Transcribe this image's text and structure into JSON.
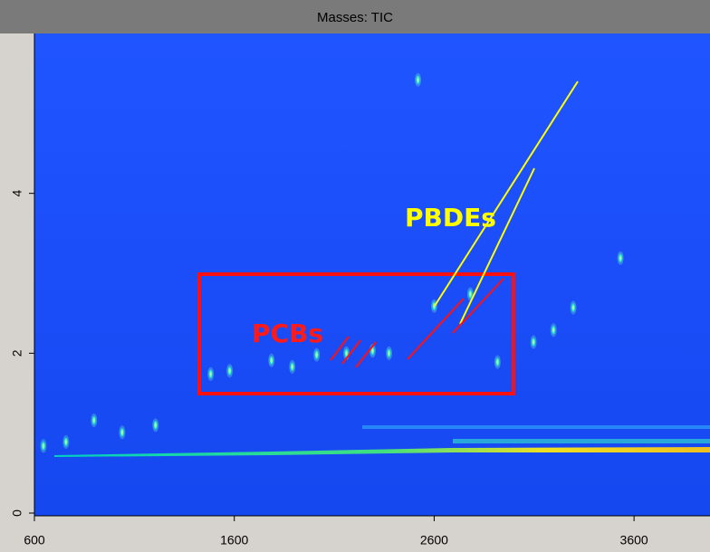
{
  "chart_data": {
    "type": "scatter",
    "title": "Masses: TIC",
    "xlim": [
      600,
      3980
    ],
    "ylim": [
      0,
      6
    ],
    "xticks": [
      600,
      1600,
      2600,
      3600
    ],
    "yticks": [
      0,
      2,
      4
    ],
    "x": [
      645,
      758,
      898,
      1039,
      1206,
      1482,
      1577,
      1786,
      1890,
      2012,
      2161,
      2292,
      2374,
      2600,
      2781,
      2917,
      3097,
      3197,
      3296,
      3532,
      2519
    ],
    "values": [
      0.84,
      0.89,
      1.16,
      1.01,
      1.1,
      1.74,
      1.78,
      1.91,
      1.83,
      1.98,
      2.0,
      2.03,
      2.0,
      2.59,
      2.74,
      1.89,
      2.14,
      2.29,
      2.57,
      3.19,
      5.42
    ],
    "color": "#7fffd4",
    "annotations": [
      {
        "text": "PCBs",
        "color": "#ff1a1a"
      },
      {
        "text": "PBDEs",
        "color": "#ffff00"
      }
    ]
  }
}
